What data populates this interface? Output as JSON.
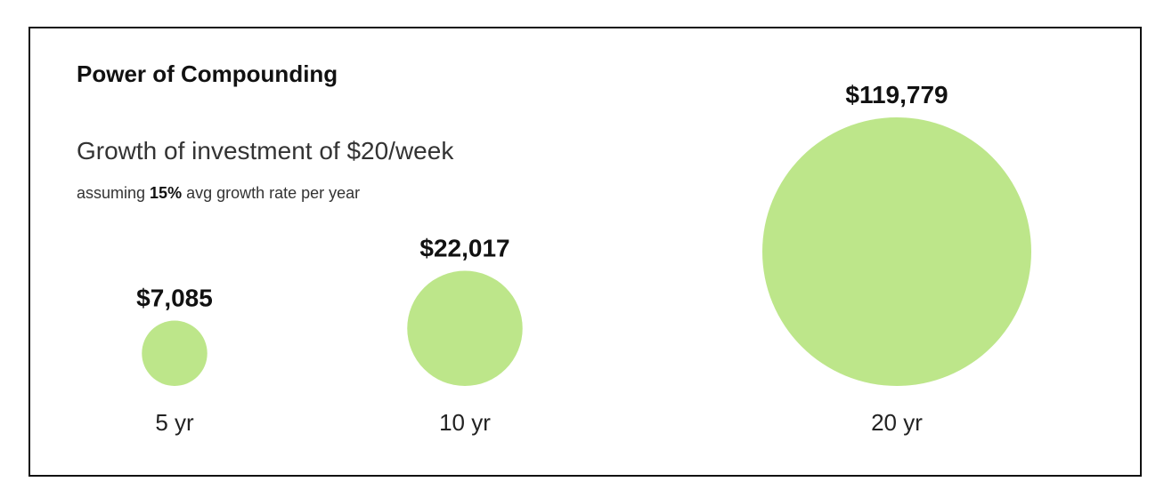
{
  "header": {
    "title": "Power of Compounding",
    "subtitle": "Growth of investment of $20/week",
    "note_prefix": "assuming ",
    "note_rate": "15%",
    "note_suffix": " avg growth rate per year"
  },
  "chart_data": {
    "type": "bubble",
    "title": "Power of Compounding",
    "subtitle": "Growth of investment of $20/week",
    "annotation": "assuming 15% avg growth rate per year",
    "categories": [
      "5 yr",
      "10 yr",
      "20 yr"
    ],
    "values": [
      7085,
      22017,
      119779
    ],
    "value_labels": [
      "$7,085",
      "$22,017",
      "$119,779"
    ],
    "color": "#bde68a",
    "grid": false,
    "legend": "none"
  }
}
